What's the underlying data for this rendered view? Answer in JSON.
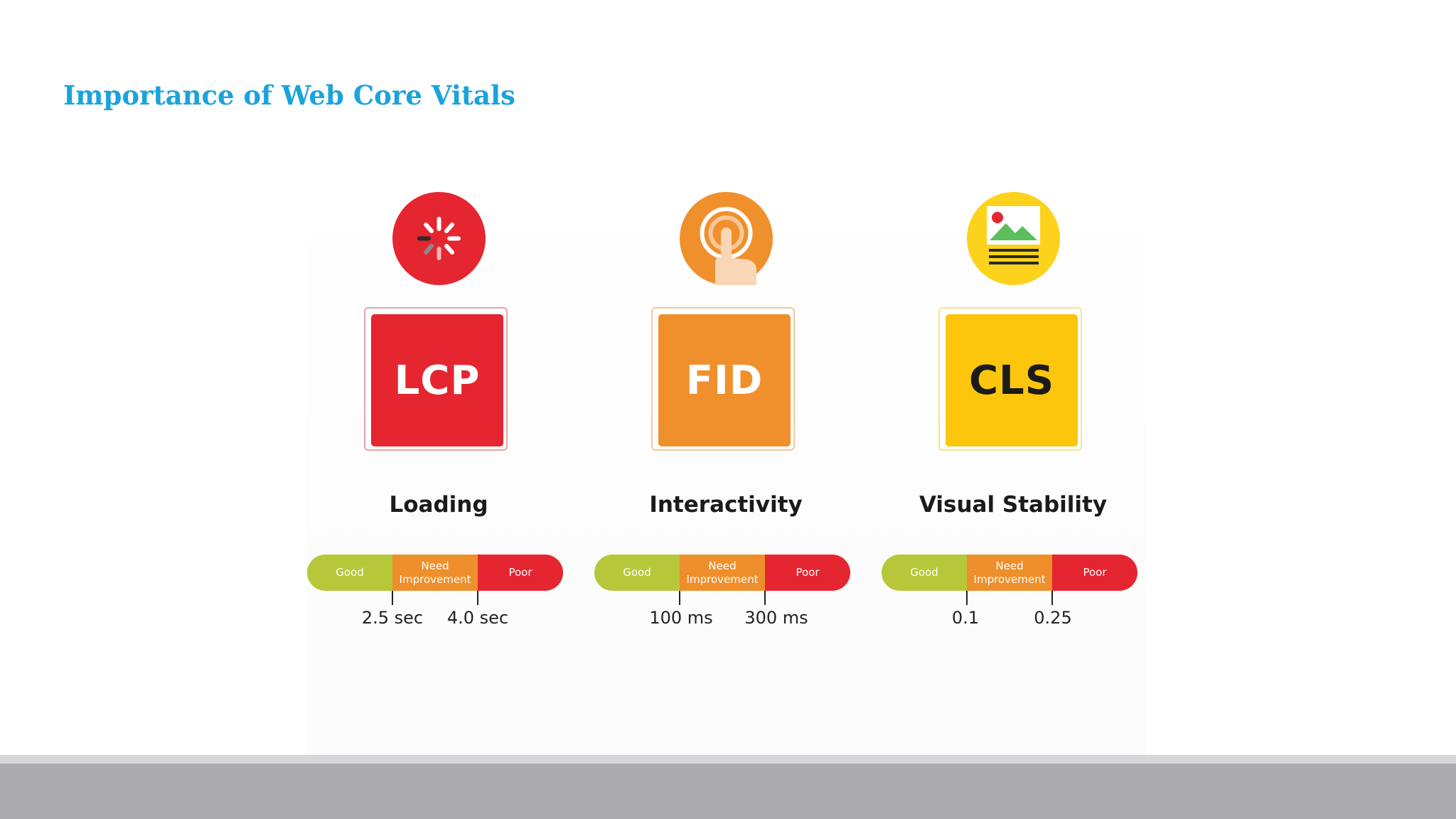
{
  "slide": {
    "title": "Importance of Web Core Vitals"
  },
  "metrics": [
    {
      "abbr": "LCP",
      "label": "Loading",
      "icon": "loading-spinner-icon",
      "color": "#e52530",
      "badge_text_color": "#ffffff",
      "scale": {
        "good": "Good",
        "need": "Need Improvement",
        "poor": "Poor"
      },
      "thresholds": [
        "2.5 sec",
        "4.0 sec"
      ]
    },
    {
      "abbr": "FID",
      "label": "Interactivity",
      "icon": "tap-finger-icon",
      "color": "#f0902c",
      "badge_text_color": "#ffffff",
      "scale": {
        "good": "Good",
        "need": "Need Improvement",
        "poor": "Poor"
      },
      "thresholds": [
        "100 ms",
        "300 ms"
      ]
    },
    {
      "abbr": "CLS",
      "label": "Visual Stability",
      "icon": "image-layout-icon",
      "color": "#fcc60d",
      "badge_text_color": "#1b1b1b",
      "scale": {
        "good": "Good",
        "need": "Need Improvement",
        "poor": "Poor"
      },
      "thresholds": [
        "0.1",
        "0.25"
      ]
    }
  ]
}
